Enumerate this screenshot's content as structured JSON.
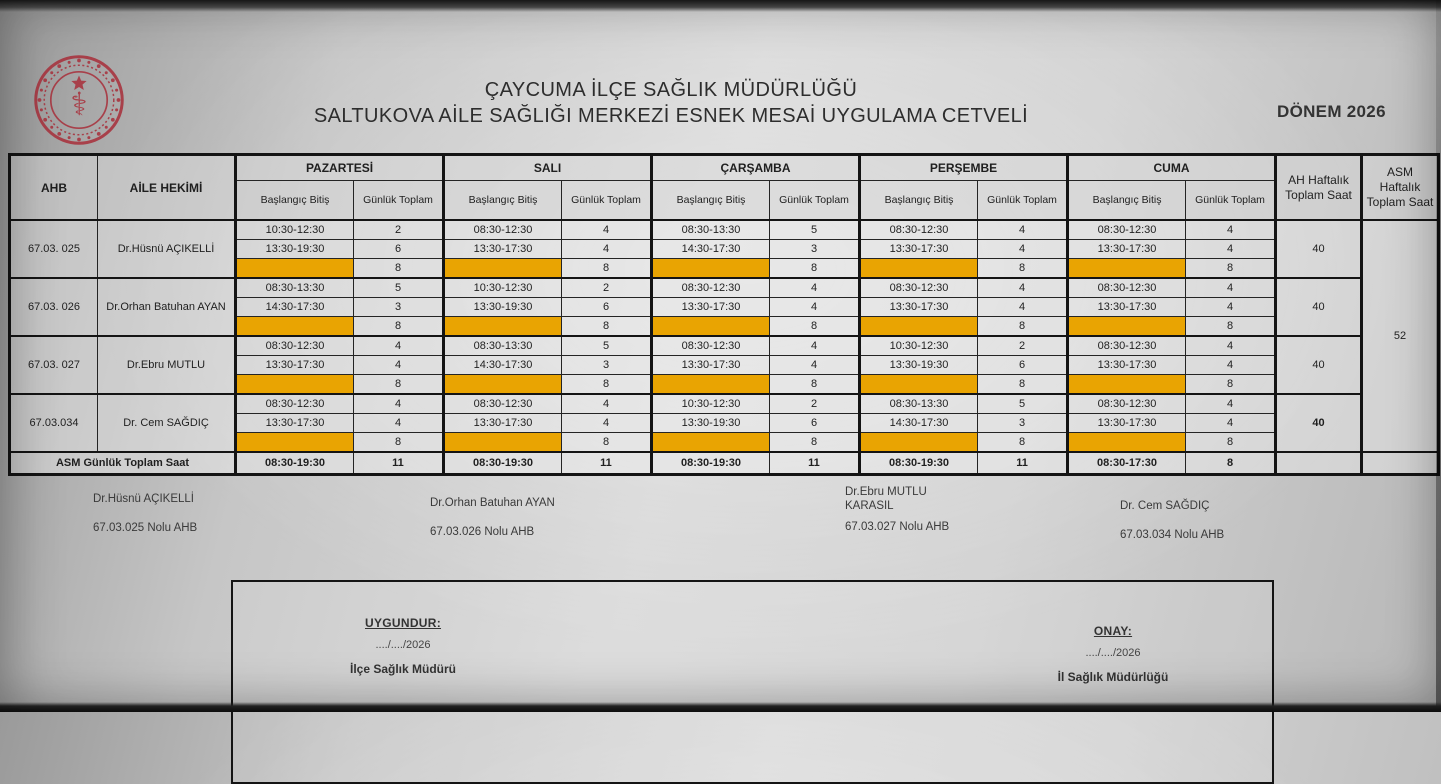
{
  "header": {
    "title_line1": "ÇAYCUMA İLÇE SAĞLIK MÜDÜRLÜĞÜ",
    "title_line2": "SALTUKOVA AİLE SAĞLIĞI MERKEZİ ESNEK MESAİ UYGULAMA CETVELİ",
    "period": "DÖNEM 2026",
    "logo_icon": "ministry-of-health-emblem"
  },
  "colors": {
    "highlight_orange": "#e9a402",
    "logo_red": "#a8404a",
    "border_dark": "#141414"
  },
  "table": {
    "col_headers": {
      "ahb": "AHB",
      "doctor": "AİLE HEKİMİ",
      "days": [
        "PAZARTESİ",
        "SALI",
        "ÇARŞAMBA",
        "PERŞEMBE",
        "CUMA"
      ],
      "sub_start": "Başlangıç Bitiş",
      "sub_total": "Günlük Toplam",
      "ah_weekly": "AH Haftalık Toplam Saat",
      "asm_weekly": "ASM Haftalık Toplam Saat"
    },
    "asm_weekly_total": "52",
    "rows": [
      {
        "ahb": "67.03. 025",
        "doctor": "Dr.Hüsnü AÇIKELLİ",
        "weekly": "40",
        "weekly_bold": false,
        "days": [
          {
            "shifts": [
              {
                "time": "10:30-12:30",
                "hours": "2"
              },
              {
                "time": "13:30-19:30",
                "hours": "6"
              }
            ],
            "total": "8"
          },
          {
            "shifts": [
              {
                "time": "08:30-12:30",
                "hours": "4"
              },
              {
                "time": "13:30-17:30",
                "hours": "4"
              }
            ],
            "total": "8"
          },
          {
            "shifts": [
              {
                "time": "08:30-13:30",
                "hours": "5"
              },
              {
                "time": "14:30-17:30",
                "hours": "3"
              }
            ],
            "total": "8"
          },
          {
            "shifts": [
              {
                "time": "08:30-12:30",
                "hours": "4"
              },
              {
                "time": "13:30-17:30",
                "hours": "4"
              }
            ],
            "total": "8"
          },
          {
            "shifts": [
              {
                "time": "08:30-12:30",
                "hours": "4"
              },
              {
                "time": "13:30-17:30",
                "hours": "4"
              }
            ],
            "total": "8"
          }
        ]
      },
      {
        "ahb": "67.03. 026",
        "doctor": "Dr.Orhan Batuhan AYAN",
        "weekly": "40",
        "weekly_bold": false,
        "days": [
          {
            "shifts": [
              {
                "time": "08:30-13:30",
                "hours": "5"
              },
              {
                "time": "14:30-17:30",
                "hours": "3"
              }
            ],
            "total": "8"
          },
          {
            "shifts": [
              {
                "time": "10:30-12:30",
                "hours": "2"
              },
              {
                "time": "13:30-19:30",
                "hours": "6"
              }
            ],
            "total": "8"
          },
          {
            "shifts": [
              {
                "time": "08:30-12:30",
                "hours": "4"
              },
              {
                "time": "13:30-17:30",
                "hours": "4"
              }
            ],
            "total": "8"
          },
          {
            "shifts": [
              {
                "time": "08:30-12:30",
                "hours": "4"
              },
              {
                "time": "13:30-17:30",
                "hours": "4"
              }
            ],
            "total": "8"
          },
          {
            "shifts": [
              {
                "time": "08:30-12:30",
                "hours": "4"
              },
              {
                "time": "13:30-17:30",
                "hours": "4"
              }
            ],
            "total": "8"
          }
        ]
      },
      {
        "ahb": "67.03. 027",
        "doctor": "Dr.Ebru MUTLU",
        "weekly": "40",
        "weekly_bold": false,
        "days": [
          {
            "shifts": [
              {
                "time": "08:30-12:30",
                "hours": "4"
              },
              {
                "time": "13:30-17:30",
                "hours": "4"
              }
            ],
            "total": "8"
          },
          {
            "shifts": [
              {
                "time": "08:30-13:30",
                "hours": "5"
              },
              {
                "time": "14:30-17:30",
                "hours": "3"
              }
            ],
            "total": "8"
          },
          {
            "shifts": [
              {
                "time": "08:30-12:30",
                "hours": "4"
              },
              {
                "time": "13:30-17:30",
                "hours": "4"
              }
            ],
            "total": "8"
          },
          {
            "shifts": [
              {
                "time": "10:30-12:30",
                "hours": "2"
              },
              {
                "time": "13:30-19:30",
                "hours": "6"
              }
            ],
            "total": "8"
          },
          {
            "shifts": [
              {
                "time": "08:30-12:30",
                "hours": "4"
              },
              {
                "time": "13:30-17:30",
                "hours": "4"
              }
            ],
            "total": "8"
          }
        ]
      },
      {
        "ahb": "67.03.034",
        "doctor": "Dr. Cem SAĞDIÇ",
        "weekly": "40",
        "weekly_bold": true,
        "days": [
          {
            "shifts": [
              {
                "time": "08:30-12:30",
                "hours": "4"
              },
              {
                "time": "13:30-17:30",
                "hours": "4"
              }
            ],
            "total": "8"
          },
          {
            "shifts": [
              {
                "time": "08:30-12:30",
                "hours": "4"
              },
              {
                "time": "13:30-17:30",
                "hours": "4"
              }
            ],
            "total": "8"
          },
          {
            "shifts": [
              {
                "time": "10:30-12:30",
                "hours": "2"
              },
              {
                "time": "13:30-19:30",
                "hours": "6"
              }
            ],
            "total": "8"
          },
          {
            "shifts": [
              {
                "time": "08:30-13:30",
                "hours": "5"
              },
              {
                "time": "14:30-17:30",
                "hours": "3"
              }
            ],
            "total": "8"
          },
          {
            "shifts": [
              {
                "time": "08:30-12:30",
                "hours": "4"
              },
              {
                "time": "13:30-17:30",
                "hours": "4"
              }
            ],
            "total": "8"
          }
        ]
      }
    ],
    "footer": {
      "label": "ASM Günlük Toplam Saat",
      "days": [
        {
          "time": "08:30-19:30",
          "hours": "11"
        },
        {
          "time": "08:30-19:30",
          "hours": "11"
        },
        {
          "time": "08:30-19:30",
          "hours": "11"
        },
        {
          "time": "08:30-19:30",
          "hours": "11"
        },
        {
          "time": "08:30-17:30",
          "hours": "8"
        }
      ]
    }
  },
  "signatures": [
    {
      "name": "Dr.Hüsnü AÇIKELLİ",
      "name2": "",
      "ahb": "67.03.025 Nolu AHB"
    },
    {
      "name": "Dr.Orhan Batuhan AYAN",
      "name2": "",
      "ahb": "67.03.026 Nolu AHB"
    },
    {
      "name": "Dr.Ebru MUTLU",
      "name2": "KARASIL",
      "ahb": "67.03.027 Nolu AHB"
    },
    {
      "name": "Dr. Cem SAĞDIÇ",
      "name2": "",
      "ahb": "67.03.034 Nolu AHB"
    }
  ],
  "approval": {
    "left": {
      "heading": "UYGUNDUR:",
      "date": "..../..../2026",
      "title": "İlçe Sağlık Müdürü"
    },
    "right": {
      "heading": "ONAY:",
      "date": "..../..../2026",
      "title": "İl Sağlık Müdürlüğü"
    }
  }
}
